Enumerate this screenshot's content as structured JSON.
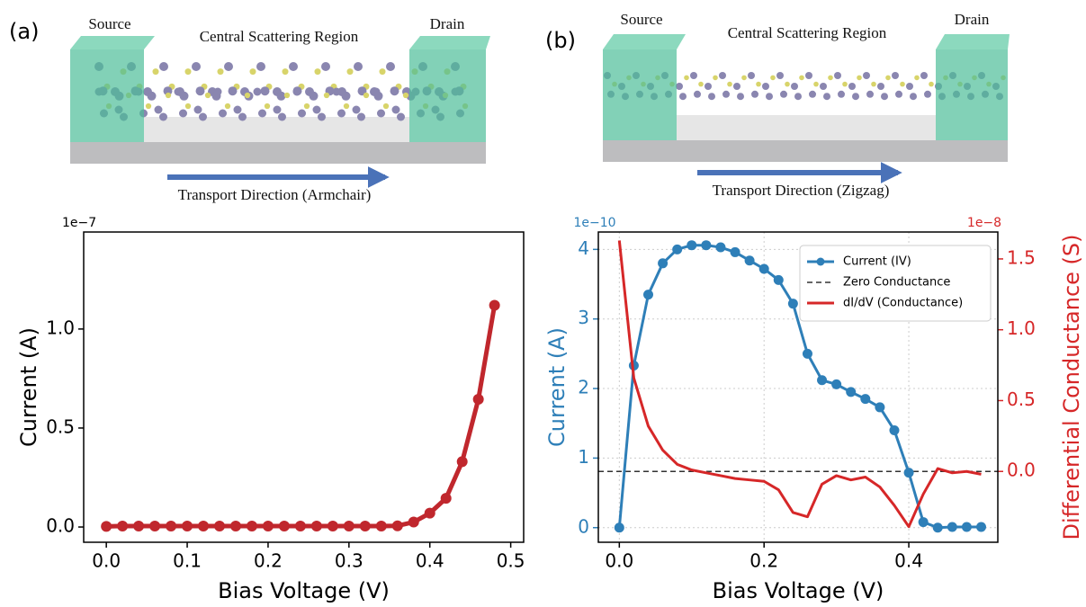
{
  "panel_labels": [
    "(a)",
    "(b)"
  ],
  "schematics": [
    {
      "source": "Source",
      "drain": "Drain",
      "region": "Central Scattering Region",
      "direction": "Transport Direction (Armchair)"
    },
    {
      "source": "Source",
      "drain": "Drain",
      "region": "Central Scattering Region",
      "direction": "Transport Direction (Zigzag)"
    }
  ],
  "chart_data": [
    {
      "type": "line",
      "x_label": "Bias Voltage (V)",
      "y_label": "Current (A)",
      "y_offset": "1e−7",
      "x": [
        0,
        0.02,
        0.04,
        0.06,
        0.08,
        0.1,
        0.12,
        0.14,
        0.16,
        0.18,
        0.2,
        0.22,
        0.24,
        0.26,
        0.28,
        0.3,
        0.32,
        0.34,
        0.36,
        0.38,
        0.4,
        0.42,
        0.44,
        0.46,
        0.48
      ],
      "values": [
        0.003,
        0.005,
        0.005,
        0.005,
        0.005,
        0.005,
        0.005,
        0.005,
        0.005,
        0.005,
        0.005,
        0.005,
        0.005,
        0.005,
        0.005,
        0.005,
        0.005,
        0.005,
        0.006,
        0.025,
        0.07,
        0.145,
        0.33,
        0.645,
        1.12
      ],
      "color": "#c0272d",
      "grid": false,
      "xlim": [
        -0.028,
        0.516
      ],
      "ylim": [
        -0.077,
        1.49
      ],
      "xticks": [
        {
          "value": 0,
          "label": "0.0"
        },
        0.1,
        0.2,
        0.3,
        0.4,
        0.5
      ],
      "yticks": [
        {
          "value": 0,
          "label": "0.0"
        },
        0.5,
        {
          "value": 1,
          "label": "1.0"
        }
      ]
    },
    {
      "type": "line",
      "x_label": "Bias Voltage (V)",
      "y_label": "Current (A)",
      "y2_label": "Differential Conductance (S)",
      "y_offset": "1e−10",
      "y2_offset": "1e−8",
      "x": [
        0,
        0.02,
        0.04,
        0.06,
        0.08,
        0.1,
        0.12,
        0.14,
        0.16,
        0.18,
        0.2,
        0.22,
        0.24,
        0.26,
        0.28,
        0.3,
        0.32,
        0.34,
        0.36,
        0.38,
        0.4,
        0.42,
        0.44,
        0.46,
        0.48,
        0.5
      ],
      "series": [
        {
          "name": "Current (IV)",
          "color": "#2e7fb8",
          "markers": true,
          "values": [
            0,
            2.33,
            3.35,
            3.8,
            4.0,
            4.06,
            4.06,
            4.03,
            3.96,
            3.84,
            3.72,
            3.56,
            3.22,
            2.5,
            2.12,
            2.06,
            1.95,
            1.85,
            1.73,
            1.4,
            0.79,
            0.08,
            0.0,
            0.01,
            0.01,
            0.01
          ]
        },
        {
          "name": "dI/dV (Conductance)",
          "color": "#d62728",
          "axis": "y2",
          "markers": false,
          "values": [
            1.63,
            0.66,
            0.32,
            0.15,
            0.05,
            0.01,
            -0.01,
            -0.03,
            -0.05,
            -0.06,
            -0.07,
            -0.13,
            -0.29,
            -0.32,
            -0.09,
            -0.03,
            -0.06,
            -0.04,
            -0.11,
            -0.24,
            -0.39,
            -0.16,
            0.02,
            -0.01,
            0.0,
            -0.02
          ]
        }
      ],
      "hline": {
        "name": "Zero Conductance",
        "value": 0,
        "axis": "y2",
        "color": "#333333"
      },
      "legend": "upper right",
      "grid": true,
      "xlim": [
        -0.029,
        0.523
      ],
      "ylim": [
        -0.21,
        4.25
      ],
      "y2lim": [
        -0.5,
        1.69
      ],
      "xticks": [
        {
          "value": 0,
          "label": "0.0"
        },
        0.2,
        0.4
      ],
      "yticks": [
        0,
        1,
        2,
        3,
        4
      ],
      "y2ticks": [
        {
          "value": 0,
          "label": "0.0"
        },
        0.5,
        {
          "value": 1,
          "label": "1.0"
        },
        1.5
      ]
    }
  ]
}
